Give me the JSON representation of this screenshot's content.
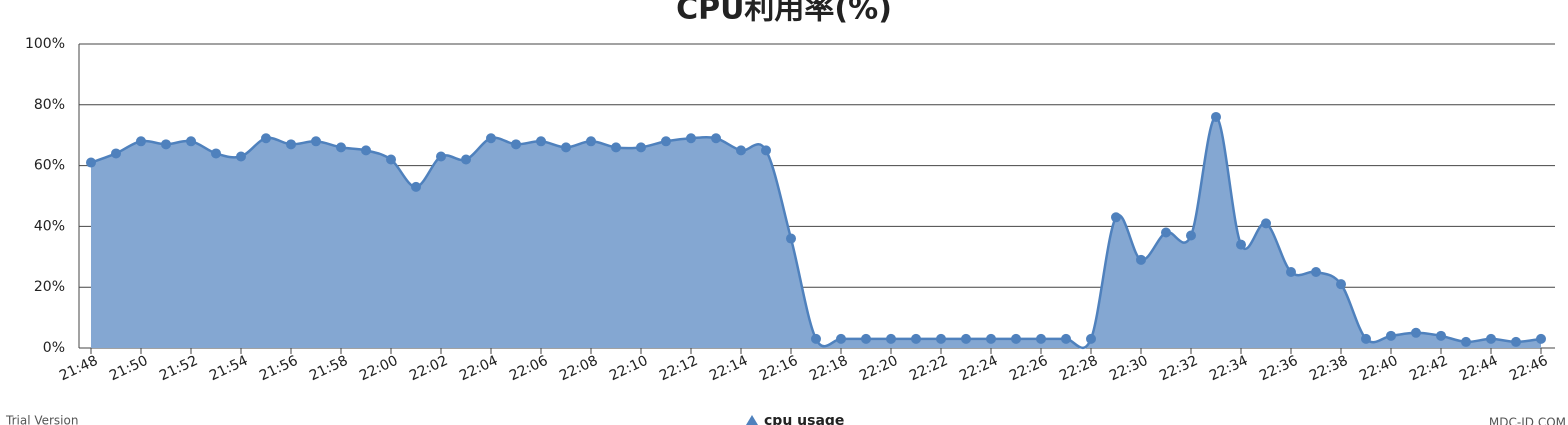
{
  "chart_data": {
    "type": "area",
    "title": "CPU利用率(%)",
    "categories": [
      "21:48",
      null,
      "21:50",
      null,
      "21:52",
      null,
      "21:54",
      null,
      "21:56",
      null,
      "21:58",
      null,
      "22:00",
      null,
      "22:02",
      null,
      "22:04",
      null,
      "22:06",
      null,
      "22:08",
      null,
      "22:10",
      null,
      "22:12",
      null,
      "22:14",
      null,
      "22:16",
      null,
      "22:18",
      null,
      "22:20",
      null,
      "22:22",
      null,
      "22:24",
      null,
      "22:26",
      null,
      "22:28",
      null,
      "22:30",
      null,
      "22:32",
      null,
      "22:34",
      null,
      "22:36",
      null,
      "22:38",
      null,
      "22:40",
      null,
      "22:42",
      null,
      "22:44",
      null,
      "22:46"
    ],
    "series": [
      {
        "name": "cpu usage",
        "color": "#4f81bd",
        "fill": "#84a7d2",
        "values": [
          61,
          64,
          68,
          67,
          68,
          64,
          63,
          69,
          67,
          68,
          66,
          65,
          62,
          53,
          63,
          62,
          69,
          67,
          68,
          66,
          68,
          66,
          66,
          68,
          69,
          69,
          65,
          65,
          36,
          3,
          3,
          3,
          3,
          3,
          3,
          3,
          3,
          3,
          3,
          3,
          3,
          43,
          29,
          38,
          37,
          76,
          34,
          41,
          25,
          25,
          21,
          3,
          4,
          5,
          4,
          2,
          3,
          2,
          3
        ]
      }
    ],
    "ylim": [
      0,
      100
    ],
    "yticks": [
      {
        "value": 0,
        "label": "0%"
      },
      {
        "value": 20,
        "label": "20%"
      },
      {
        "value": 40,
        "label": "40%"
      },
      {
        "value": 60,
        "label": "60%"
      },
      {
        "value": 80,
        "label": "80%"
      },
      {
        "value": 100,
        "label": "100%"
      }
    ],
    "grid": true,
    "footer_left": "Trial Version",
    "footer_right": "MDC-ID.COM"
  }
}
